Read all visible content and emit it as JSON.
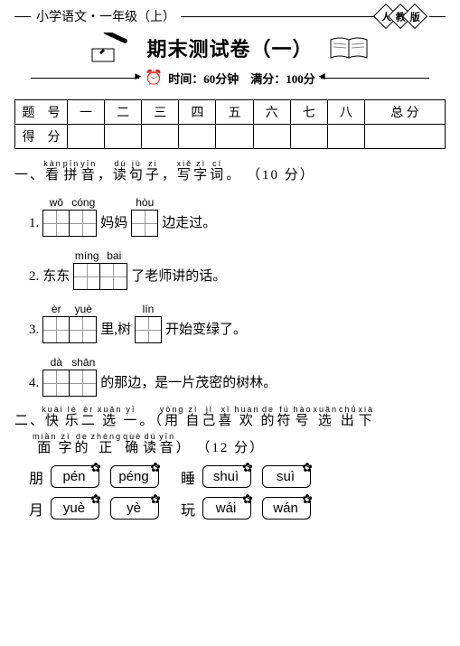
{
  "header": {
    "subject": "小学语文・一年级（上）",
    "edition": [
      "人",
      "教",
      "版"
    ],
    "title": "期末测试卷（一）",
    "time_label": "时间：60分钟　满分：100分"
  },
  "score_table": {
    "row1_label": "题　号",
    "row2_label": "得　分",
    "cols": [
      "一",
      "二",
      "三",
      "四",
      "五",
      "六",
      "七",
      "八",
      "总 分"
    ]
  },
  "q1": {
    "title_pinyin": [
      "kàn",
      "pīn",
      "yīn",
      "",
      "dú",
      "jù",
      "zi",
      "",
      "xiě",
      "zì",
      "cí"
    ],
    "title_chars": [
      "看",
      "拼",
      "音",
      "，",
      "读",
      "句",
      "子",
      "，",
      "写",
      "字",
      "词",
      "。"
    ],
    "points": "（10 分）",
    "items": [
      {
        "n": "1.",
        "pre": "",
        "p": [
          "wǒ",
          "cóng"
        ],
        "mid": "妈妈",
        "p2": [
          "hòu"
        ],
        "tail": "边走过。"
      },
      {
        "n": "2.",
        "pre_text": "东东",
        "p": [
          "míng",
          "bai"
        ],
        "tail": "了老师讲的话。"
      },
      {
        "n": "3.",
        "p": [
          "èr",
          "yuè"
        ],
        "mid": "里,树",
        "p2": [
          "lín"
        ],
        "tail": "开始变绿了。"
      },
      {
        "n": "4.",
        "p": [
          "dà",
          "shān"
        ],
        "tail": "的那边，是一片茂密的树林。"
      }
    ]
  },
  "q2": {
    "title_pinyin": [
      "kuài",
      "lè",
      "èr",
      "xuǎn",
      "yī",
      "",
      "",
      "yòng",
      "zì",
      "jǐ",
      "xǐ",
      "huan",
      "de",
      "fú",
      "hào",
      "xuǎn",
      "chū",
      "xià"
    ],
    "title_chars": [
      "快",
      "乐",
      "二",
      "选",
      "一",
      "。",
      "（",
      "用",
      "自",
      "己",
      "喜",
      "欢",
      "的",
      "符",
      "号",
      "选",
      "出",
      "下"
    ],
    "title2_pinyin": [
      "miàn",
      "zì",
      "de",
      "zhèng",
      "què",
      "dú",
      "yīn"
    ],
    "title2_chars": [
      "面",
      "字",
      "的",
      "正",
      "确",
      "读",
      "音",
      "）"
    ],
    "points": "（12 分）",
    "rows": [
      {
        "l_char": "朋",
        "l_opts": [
          "pén",
          "péng"
        ],
        "r_char": "睡",
        "r_opts": [
          "shuì",
          "suì"
        ]
      },
      {
        "l_char": "月",
        "l_opts": [
          "yuè",
          "yè"
        ],
        "r_char": "玩",
        "r_opts": [
          "wái",
          "wán"
        ]
      }
    ]
  },
  "style": {
    "flower_glyph": "✿"
  }
}
